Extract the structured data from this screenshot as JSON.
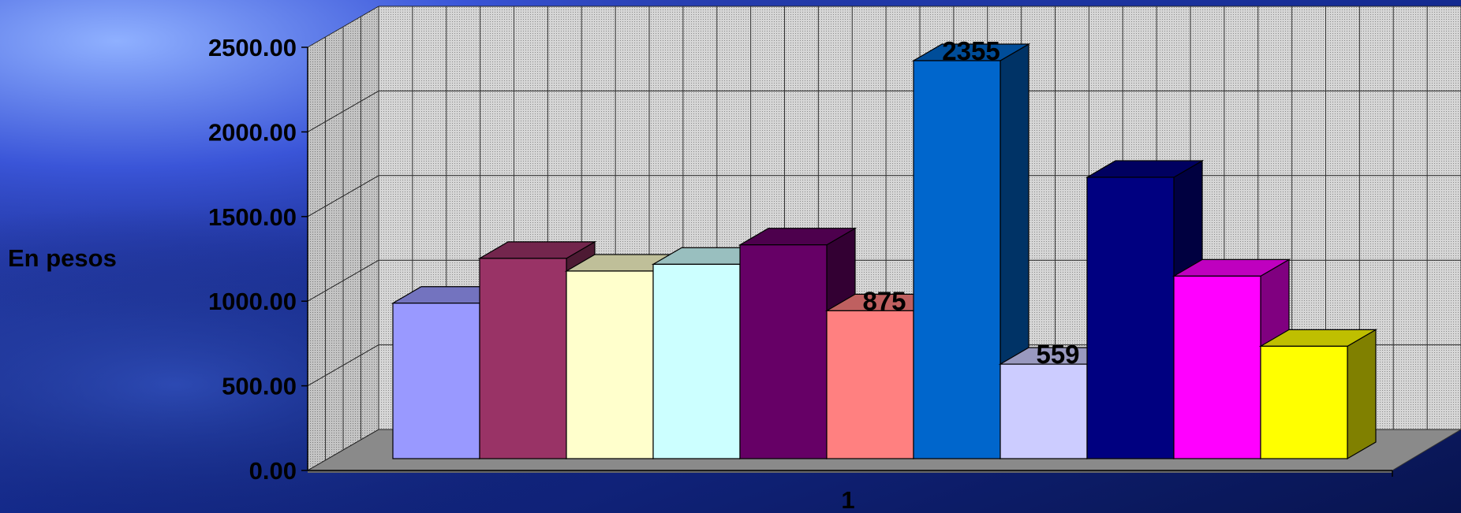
{
  "chart_data": {
    "type": "bar",
    "style": "3d-clustered-column",
    "title": "",
    "xlabel": "",
    "ylabel": "En pesos",
    "categories": [
      "1"
    ],
    "ylim": [
      0,
      2500
    ],
    "yticks": [
      "0.00",
      "500.00",
      "1000.00",
      "1500.00",
      "2000.00",
      "2500.00"
    ],
    "grid": true,
    "legend": "none",
    "series": [
      {
        "values": [
          920
        ],
        "color": "#9999FF"
      },
      {
        "values": [
          1185
        ],
        "color": "#993366"
      },
      {
        "values": [
          1110
        ],
        "color": "#FFFFCC"
      },
      {
        "values": [
          1150
        ],
        "color": "#CCFFFF"
      },
      {
        "values": [
          1265
        ],
        "color": "#660066"
      },
      {
        "values": [
          875
        ],
        "color": "#FF8080",
        "label": "875"
      },
      {
        "values": [
          2355
        ],
        "color": "#0066CC",
        "label": "2355"
      },
      {
        "values": [
          559
        ],
        "color": "#CCCCFF",
        "label": "559"
      },
      {
        "values": [
          1665
        ],
        "color": "#000080"
      },
      {
        "values": [
          1080
        ],
        "color": "#FF00FF"
      },
      {
        "values": [
          665
        ],
        "color": "#FFFF00"
      }
    ]
  }
}
